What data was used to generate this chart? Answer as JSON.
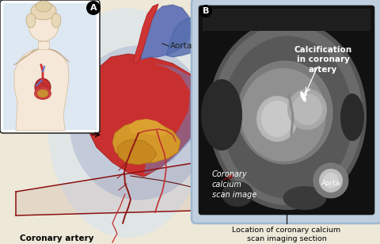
{
  "bg_color": "#ede8d8",
  "panel_a_label": "A",
  "panel_b_label": "B",
  "aorta_label": "Aorta",
  "calcification_label": "Calcification\nin coronary\nartery",
  "scan_label": "Coronary\ncalcium\nscan image",
  "aorta_b_label": "Aorta",
  "bottom_left_label_bold": "Coronary artery\nwith calcification",
  "bottom_right_label": "Location of coronary calcium\nscan imaging section",
  "figure_width": 4.8,
  "figure_height": 3.08,
  "dpi": 100
}
